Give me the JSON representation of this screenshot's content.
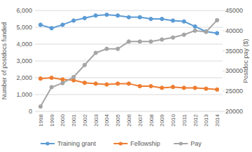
{
  "chart_data": {
    "type": "line",
    "categories": [
      "1998",
      "1999",
      "2000",
      "2001",
      "2002",
      "2003",
      "2004",
      "2005",
      "2006",
      "2007",
      "2008",
      "2009",
      "2010",
      "2011",
      "2012",
      "2013",
      "2014"
    ],
    "y_label": "Number of postdocs funded",
    "y2_label": "Postdoc pay ($)",
    "ylim": [
      0,
      6000
    ],
    "yticks": [
      0,
      {
        "value": 1000,
        "label": "1,000"
      },
      {
        "value": 2000,
        "label": "2,000"
      },
      {
        "value": 3000,
        "label": "3,000"
      },
      {
        "value": 4000,
        "label": "4,000"
      },
      {
        "value": 5000,
        "label": "5,000"
      },
      {
        "value": 6000,
        "label": "6,000"
      }
    ],
    "y2lim": [
      20000,
      45000
    ],
    "y2ticks": [
      20000,
      25000,
      30000,
      35000,
      40000,
      45000
    ],
    "grid": true,
    "legend": "bottom",
    "series": [
      {
        "name": "Training grant",
        "color": "#5b9bd5",
        "marker": "circle",
        "values": [
          5150,
          4950,
          5150,
          5400,
          5550,
          5700,
          5750,
          5700,
          5600,
          5600,
          5500,
          5500,
          5400,
          5350,
          5050,
          4750,
          4650
        ]
      },
      {
        "name": "Fellowship",
        "color": "#ed7d31",
        "marker": "circle",
        "values": [
          1950,
          2000,
          1900,
          1850,
          1700,
          1650,
          1600,
          1650,
          1650,
          1500,
          1500,
          1400,
          1450,
          1400,
          1400,
          1350,
          1300
        ]
      },
      {
        "name": "Pay",
        "color": "#a5a5a5",
        "marker": "circle",
        "axis": "y2",
        "values": [
          21200,
          26000,
          27000,
          28500,
          31500,
          34500,
          35500,
          35500,
          37300,
          37300,
          37300,
          37800,
          38300,
          39000,
          40000,
          39700,
          42600
        ]
      }
    ]
  }
}
